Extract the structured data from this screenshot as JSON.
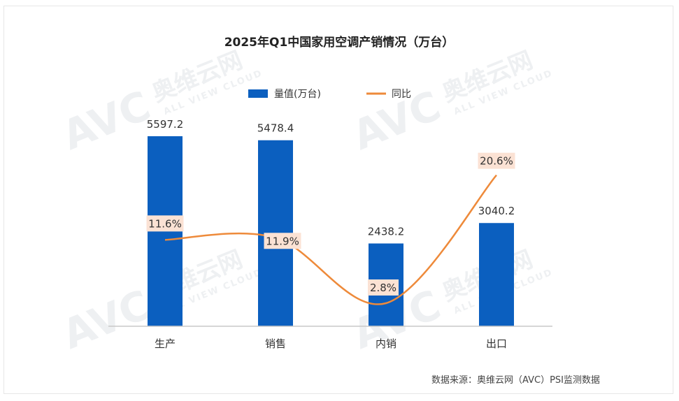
{
  "chart_data": {
    "type": "bar",
    "title": "2025年Q1中国家用空调产销情况（万台）",
    "categories": [
      "生产",
      "销售",
      "内销",
      "出口"
    ],
    "series": [
      {
        "name": "量值(万台)",
        "type": "bar",
        "values": [
          5597.2,
          5478.4,
          2438.2,
          3040.2
        ],
        "labels": [
          "5597.2",
          "5478.4",
          "2438.2",
          "3040.2"
        ]
      },
      {
        "name": "同比",
        "type": "line",
        "values": [
          11.6,
          11.9,
          2.8,
          20.6
        ],
        "labels": [
          "11.6%",
          "11.9%",
          "2.8%",
          "20.6%"
        ]
      }
    ],
    "legend": {
      "position": "top-center"
    },
    "colors": {
      "bar": "#0b5fbf",
      "line": "#ee8a3a",
      "label_bg": "#fbe2d4",
      "axis": "#c8c8c8",
      "text": "#333333"
    },
    "grid": false
  },
  "watermark": {
    "brand": "AVC",
    "cn": "奥维云网",
    "en": "ALL VIEW CLOUD"
  },
  "source": "数据来源：奥维云网（AVC）PSI监测数据"
}
